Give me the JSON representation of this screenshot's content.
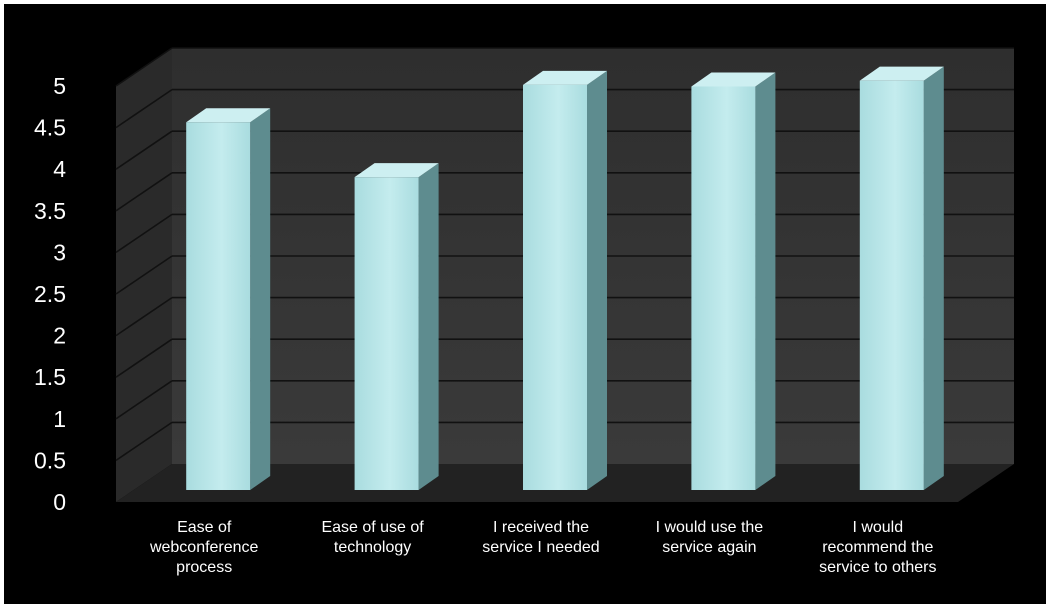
{
  "chart_data": {
    "type": "bar",
    "title": "",
    "xlabel": "",
    "ylabel": "",
    "categories": [
      [
        "Ease of",
        "webconference",
        "process"
      ],
      [
        "Ease of use of",
        "technology"
      ],
      [
        "I received the",
        "service I needed"
      ],
      [
        "I would use the",
        "service again"
      ],
      [
        "I would",
        "recommend the",
        "service to others"
      ]
    ],
    "values": [
      4.42,
      3.76,
      4.87,
      4.85,
      4.92
    ],
    "ylim": [
      0,
      5
    ],
    "yticks": [
      "0",
      "0.5",
      "1",
      "1.5",
      "2",
      "2.5",
      "3",
      "3.5",
      "4",
      "4.5",
      "5"
    ],
    "grid": true,
    "legend": "none",
    "colors": {
      "background": "#000000",
      "plot_wall": "#3a3a3a",
      "floor": "#222222",
      "gridline": "#111111",
      "bar_front": "#a9dcdf",
      "bar_side": "#5e8c8f",
      "bar_top": "#cdeff1",
      "text": "#ffffff"
    }
  }
}
